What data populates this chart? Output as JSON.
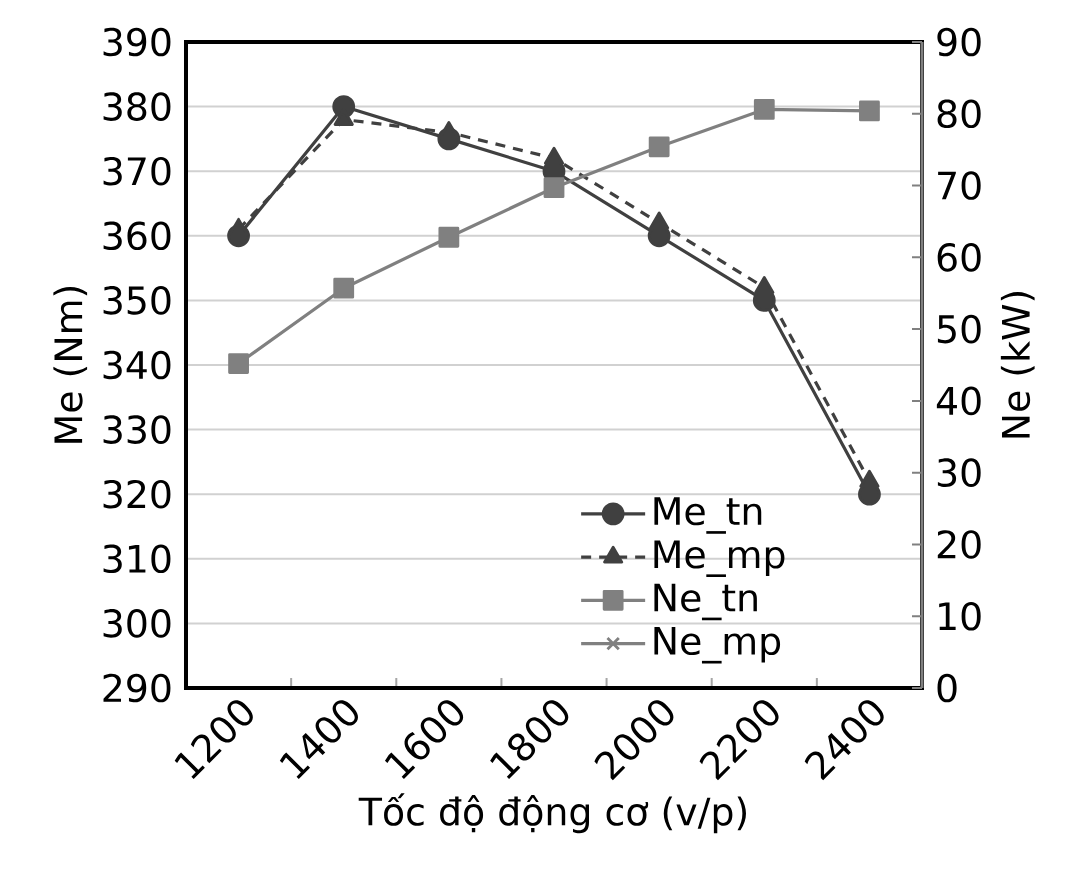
{
  "chart_data": {
    "type": "line",
    "xlabel": "Tốc độ động cơ (v/p)",
    "ylabel": "Me (Nm)",
    "y2label": "Ne (kW)",
    "categories": [
      "1200",
      "1400",
      "1600",
      "1800",
      "2000",
      "2200",
      "2400"
    ],
    "ylim": [
      290,
      390
    ],
    "yticks": [
      290,
      300,
      310,
      320,
      330,
      340,
      350,
      360,
      370,
      380,
      390
    ],
    "y2lim": [
      0,
      90
    ],
    "y2ticks": [
      0,
      10,
      20,
      30,
      40,
      50,
      60,
      70,
      80,
      90
    ],
    "grid": "y",
    "legend": "bottom right",
    "series": [
      {
        "name": "Me_tn",
        "color": "#404040",
        "marker": "circle",
        "line_style": "solid",
        "values": [
          360,
          380,
          375,
          370,
          360,
          350,
          320
        ]
      },
      {
        "name": "Me_mp",
        "color": "#404040",
        "marker": "triangle",
        "line_style": "dashed",
        "values": [
          361,
          378,
          376,
          372,
          362,
          352,
          322
        ]
      },
      {
        "name": "Ne_tn",
        "color": "#808080",
        "marker": "square",
        "line_style": "solid",
        "axis": "y2",
        "values": [
          45.2,
          55.7,
          62.8,
          69.7,
          75.4,
          80.6,
          80.4
        ]
      },
      {
        "name": "Ne_mp",
        "color": "#808080",
        "marker": "cross",
        "line_style": "solid",
        "axis": "y2",
        "values": [
          null,
          null,
          null,
          null,
          null,
          null,
          null
        ]
      }
    ]
  }
}
